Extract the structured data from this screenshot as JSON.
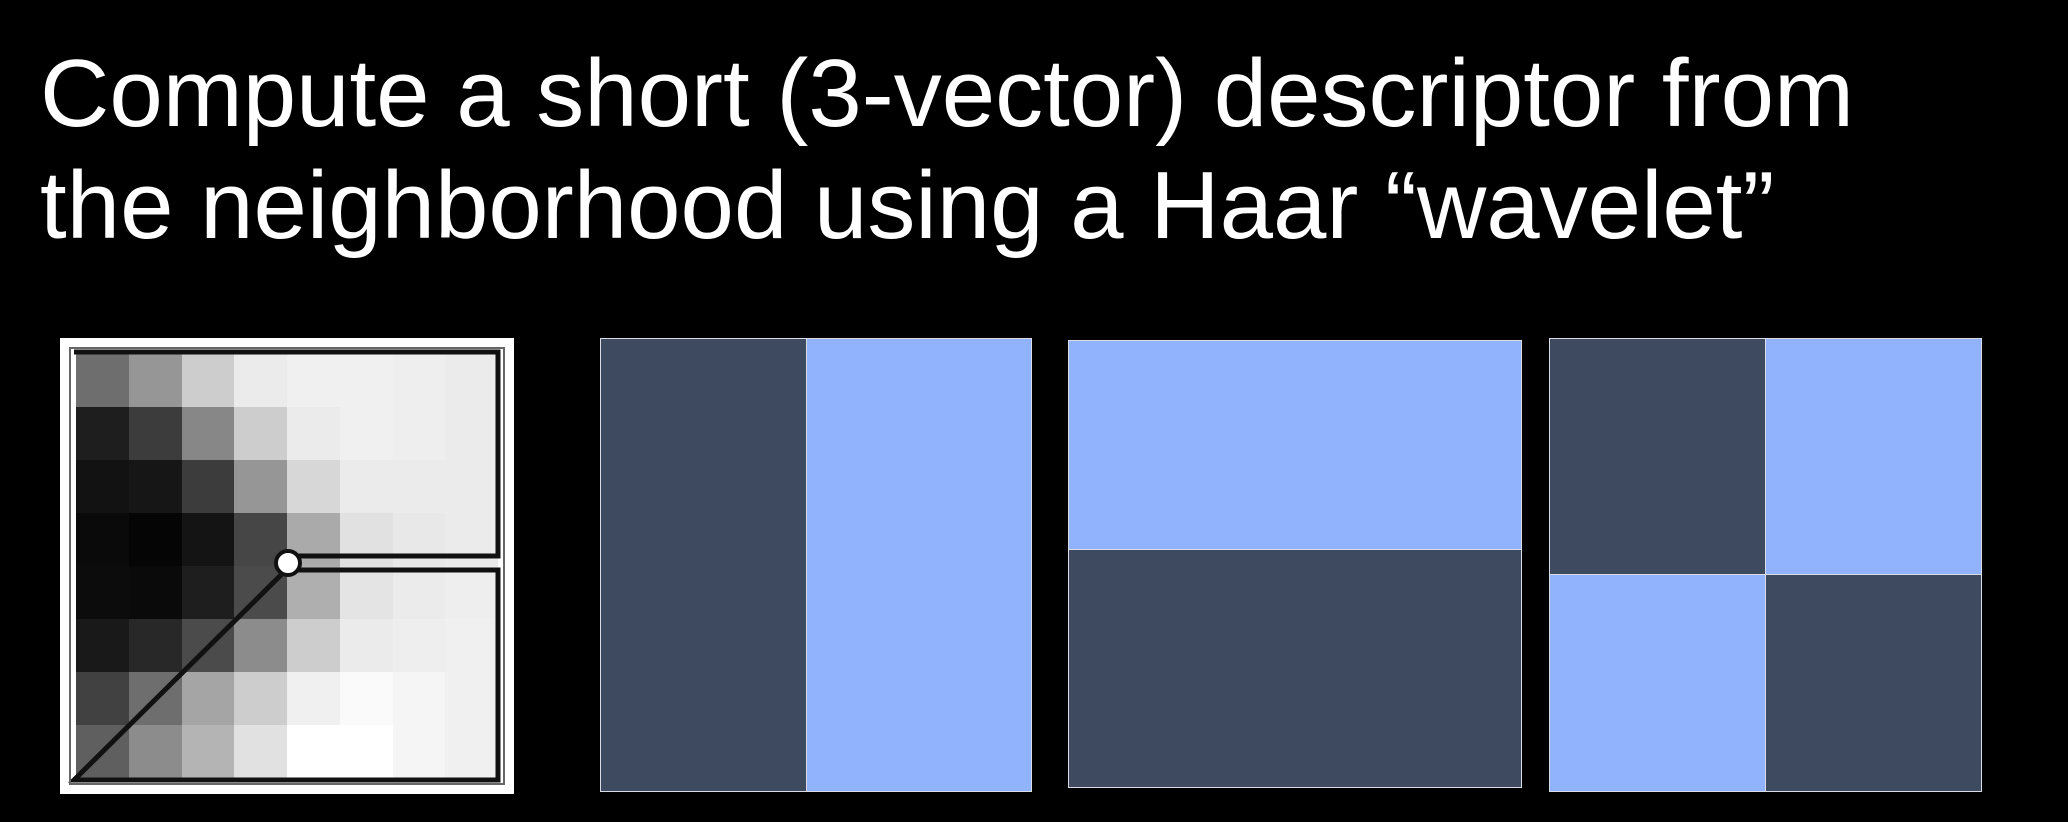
{
  "slide": {
    "title_lines": [
      "Compute a short (3-vector) descriptor from",
      "the neighborhood using a Haar “wavelet”"
    ]
  },
  "colors": {
    "background": "#000000",
    "text": "#ffffff",
    "wavelet_dark": "#3d4a60",
    "wavelet_light": "#91b3fe",
    "wavelet_border": "#d9dce6"
  },
  "patch": {
    "description_icon": "grayscale-pixel-patch",
    "intensities": [
      [
        110,
        150,
        205,
        235,
        240,
        240,
        238,
        235
      ],
      [
        30,
        60,
        135,
        205,
        235,
        240,
        238,
        235
      ],
      [
        18,
        22,
        60,
        150,
        215,
        235,
        235,
        235
      ],
      [
        10,
        5,
        20,
        70,
        170,
        225,
        232,
        235
      ],
      [
        12,
        10,
        30,
        75,
        175,
        228,
        235,
        238
      ],
      [
        25,
        40,
        75,
        140,
        205,
        235,
        238,
        240
      ],
      [
        65,
        110,
        165,
        205,
        240,
        250,
        245,
        240
      ],
      [
        95,
        140,
        180,
        225,
        255,
        255,
        245,
        240
      ]
    ]
  },
  "wavelets": [
    {
      "name": "vertical-edge-wavelet",
      "pattern": [
        [
          "dark",
          "light"
        ]
      ]
    },
    {
      "name": "horizontal-edge-wavelet",
      "pattern": [
        [
          "light"
        ],
        [
          "dark"
        ]
      ]
    },
    {
      "name": "diagonal-wavelet",
      "pattern": [
        [
          "dark",
          "light"
        ],
        [
          "light",
          "dark"
        ]
      ]
    }
  ]
}
